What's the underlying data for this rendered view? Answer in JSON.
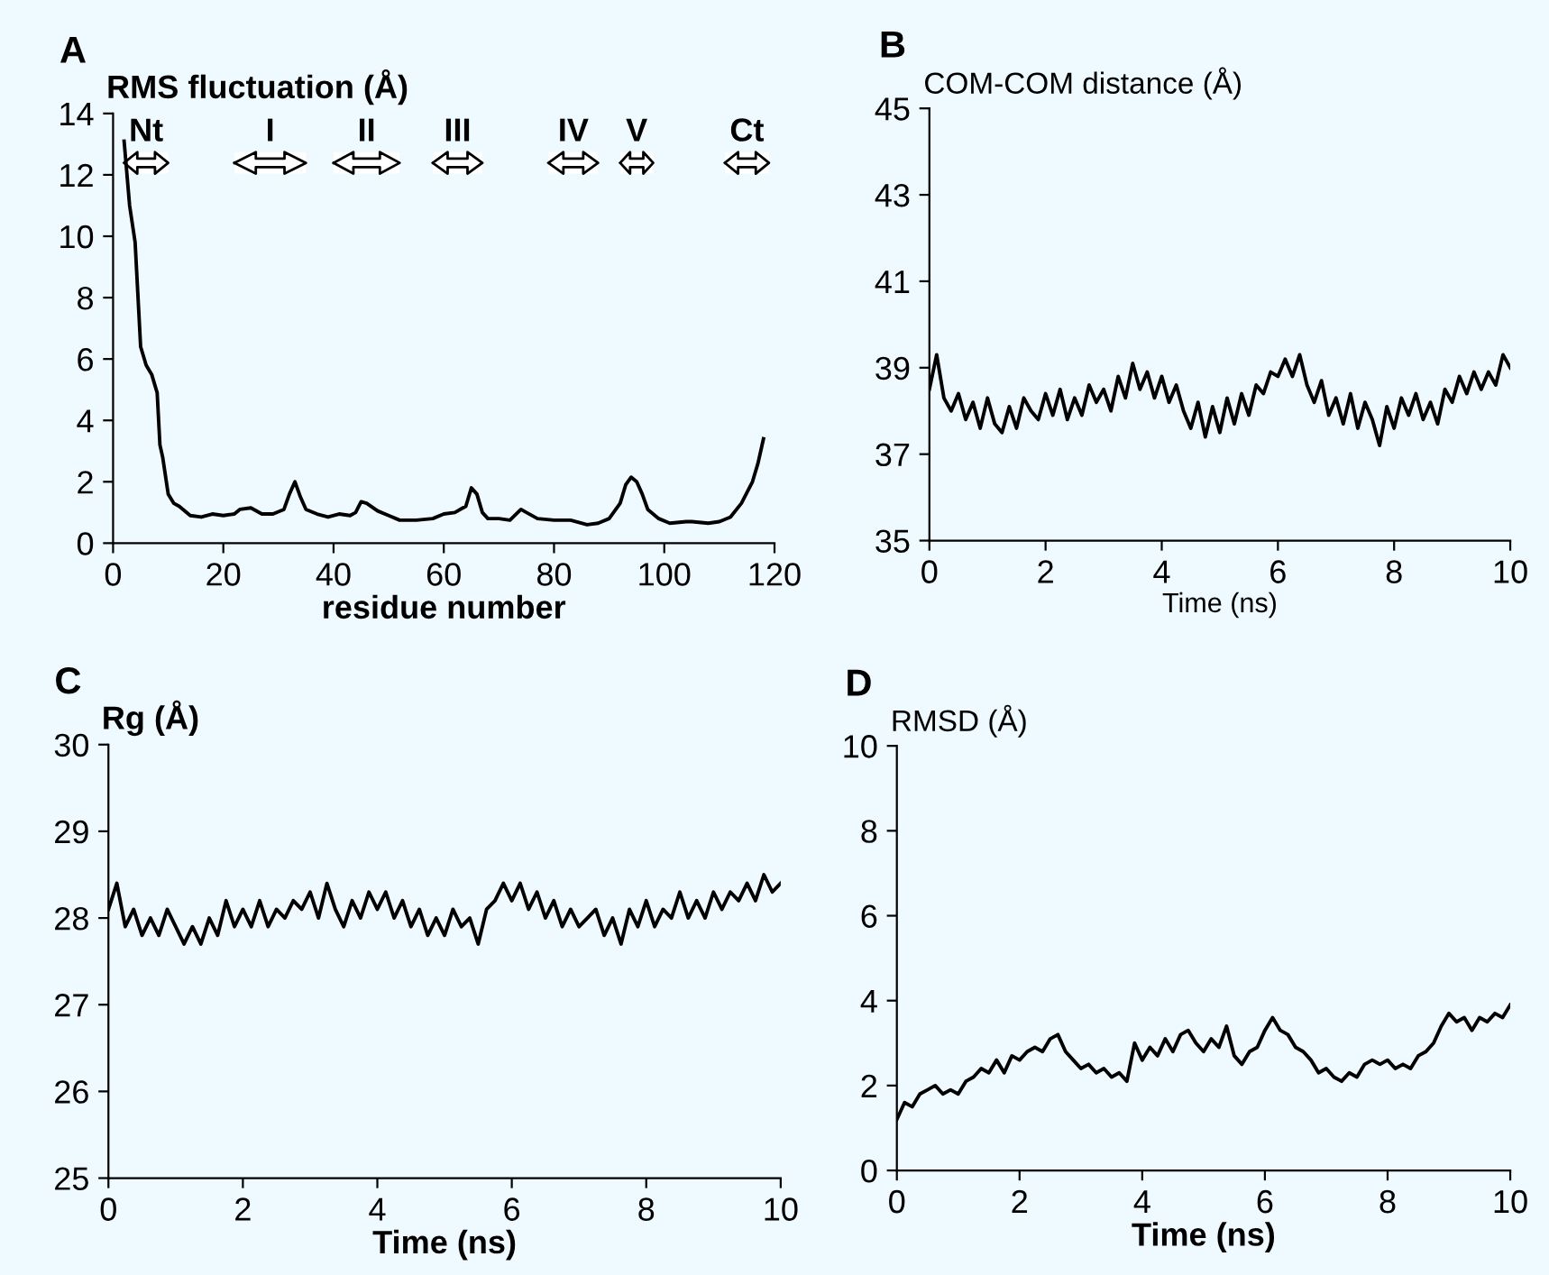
{
  "chart_data": [
    {
      "type": "line",
      "ylabel": "RMS fluctuation (Å)",
      "xlabel": "residue number",
      "xlim": [
        0,
        120
      ],
      "xticks": [
        0,
        20,
        40,
        60,
        80,
        100,
        120
      ],
      "ylim": [
        0,
        14
      ],
      "yticks": [
        0,
        2,
        4,
        6,
        8,
        10,
        12,
        14
      ],
      "grid": false,
      "marker": "none",
      "line_style": "solid",
      "annotations": [
        "A"
      ],
      "bands": [
        {
          "axis": "x",
          "from": 2,
          "to": 10,
          "label": "Nt",
          "color": "#ffffff"
        },
        {
          "axis": "x",
          "from": 22,
          "to": 35,
          "label": "I",
          "color": "#ffffff"
        },
        {
          "axis": "x",
          "from": 40,
          "to": 52,
          "label": "II",
          "color": "#ffffff"
        },
        {
          "axis": "x",
          "from": 58,
          "to": 67,
          "label": "III",
          "color": "#ffffff"
        },
        {
          "axis": "x",
          "from": 79,
          "to": 88,
          "label": "IV",
          "color": "#ffffff"
        },
        {
          "axis": "x",
          "from": 92,
          "to": 98,
          "label": "V",
          "color": "#ffffff"
        },
        {
          "axis": "x",
          "from": 111,
          "to": 119,
          "label": "Ct",
          "color": "#ffffff"
        }
      ],
      "series": [
        {
          "color": "#000000",
          "x": [
            2,
            3,
            4,
            5,
            6,
            7,
            8,
            8.5,
            9,
            10,
            11,
            12,
            14,
            16,
            18,
            20,
            22,
            23,
            25,
            27,
            29,
            31,
            32,
            33,
            34,
            35,
            37,
            39,
            41,
            43,
            44,
            45,
            46,
            48,
            50,
            52,
            55,
            58,
            60,
            62,
            64,
            65,
            66,
            67,
            68,
            70,
            72,
            74,
            75,
            77,
            80,
            83,
            86,
            88,
            90,
            92,
            93,
            94,
            95,
            96,
            97,
            99,
            101,
            104,
            105,
            108,
            110,
            112,
            114,
            116,
            117,
            118
          ],
          "values": [
            13.1,
            11,
            9.8,
            6.4,
            5.8,
            5.5,
            4.9,
            3.2,
            2.8,
            1.6,
            1.3,
            1.2,
            0.9,
            0.85,
            0.95,
            0.9,
            0.95,
            1.1,
            1.15,
            0.95,
            0.95,
            1.1,
            1.6,
            2.0,
            1.5,
            1.1,
            0.95,
            0.85,
            0.95,
            0.9,
            1.0,
            1.35,
            1.3,
            1.05,
            0.9,
            0.75,
            0.75,
            0.8,
            0.95,
            1.0,
            1.2,
            1.8,
            1.6,
            1.0,
            0.8,
            0.8,
            0.75,
            1.1,
            1.0,
            0.8,
            0.75,
            0.75,
            0.6,
            0.65,
            0.8,
            1.3,
            1.9,
            2.15,
            2.0,
            1.6,
            1.1,
            0.8,
            0.65,
            0.7,
            0.7,
            0.65,
            0.7,
            0.85,
            1.3,
            2.0,
            2.6,
            3.4
          ]
        }
      ]
    },
    {
      "type": "line",
      "ylabel": "COM-COM distance (Å)",
      "xlabel": "Time (ns)",
      "annotations": [
        "B"
      ],
      "xlim": [
        0,
        10
      ],
      "xticks": [
        0,
        2,
        4,
        6,
        8,
        10
      ],
      "ylim": [
        35,
        45
      ],
      "yticks": [
        35,
        37,
        39,
        41,
        43,
        45
      ],
      "grid": false,
      "marker": "none",
      "line_style": "solid",
      "series": [
        {
          "color": "#000000",
          "x": [
            0,
            0.125,
            0.25,
            0.375,
            0.5,
            0.625,
            0.75,
            0.875,
            1,
            1.125,
            1.25,
            1.375,
            1.5,
            1.625,
            1.75,
            1.875,
            2,
            2.125,
            2.25,
            2.375,
            2.5,
            2.625,
            2.75,
            2.875,
            3,
            3.125,
            3.25,
            3.375,
            3.5,
            3.625,
            3.75,
            3.875,
            4,
            4.125,
            4.25,
            4.375,
            4.5,
            4.625,
            4.75,
            4.875,
            5,
            5.125,
            5.25,
            5.375,
            5.5,
            5.625,
            5.75,
            5.875,
            6,
            6.125,
            6.25,
            6.375,
            6.5,
            6.625,
            6.75,
            6.875,
            7,
            7.125,
            7.25,
            7.375,
            7.5,
            7.625,
            7.75,
            7.875,
            8,
            8.125,
            8.25,
            8.375,
            8.5,
            8.625,
            8.75,
            8.875,
            9,
            9.125,
            9.25,
            9.375,
            9.5,
            9.625,
            9.75,
            9.875,
            10
          ],
          "values": [
            38.5,
            39.3,
            38.3,
            38.0,
            38.4,
            37.8,
            38.2,
            37.6,
            38.3,
            37.7,
            37.5,
            38.1,
            37.6,
            38.3,
            38.0,
            37.8,
            38.4,
            37.9,
            38.5,
            37.8,
            38.3,
            37.9,
            38.6,
            38.2,
            38.5,
            38.0,
            38.8,
            38.3,
            39.1,
            38.5,
            38.9,
            38.3,
            38.8,
            38.2,
            38.6,
            38.0,
            37.6,
            38.2,
            37.4,
            38.1,
            37.5,
            38.3,
            37.7,
            38.4,
            37.9,
            38.6,
            38.4,
            38.9,
            38.8,
            39.2,
            38.8,
            39.3,
            38.6,
            38.2,
            38.7,
            37.9,
            38.3,
            37.7,
            38.4,
            37.6,
            38.2,
            37.8,
            37.2,
            38.1,
            37.6,
            38.3,
            37.9,
            38.4,
            37.8,
            38.2,
            37.7,
            38.5,
            38.2,
            38.8,
            38.4,
            38.9,
            38.5,
            38.9,
            38.6,
            39.3,
            39.0
          ]
        }
      ]
    },
    {
      "type": "line",
      "ylabel": "Rg (Å)",
      "xlabel": "Time (ns)",
      "annotations": [
        "C"
      ],
      "xlim": [
        0,
        10
      ],
      "xticks": [
        0,
        2,
        4,
        6,
        8,
        10
      ],
      "ylim": [
        25,
        30
      ],
      "yticks": [
        25,
        26,
        27,
        28,
        29,
        30
      ],
      "grid": false,
      "marker": "none",
      "line_style": "solid",
      "series": [
        {
          "color": "#000000",
          "x": [
            0,
            0.125,
            0.25,
            0.375,
            0.5,
            0.625,
            0.75,
            0.875,
            1,
            1.125,
            1.25,
            1.375,
            1.5,
            1.625,
            1.75,
            1.875,
            2,
            2.125,
            2.25,
            2.375,
            2.5,
            2.625,
            2.75,
            2.875,
            3,
            3.125,
            3.25,
            3.375,
            3.5,
            3.625,
            3.75,
            3.875,
            4,
            4.125,
            4.25,
            4.375,
            4.5,
            4.625,
            4.75,
            4.875,
            5,
            5.125,
            5.25,
            5.375,
            5.5,
            5.625,
            5.75,
            5.875,
            6,
            6.125,
            6.25,
            6.375,
            6.5,
            6.625,
            6.75,
            6.875,
            7,
            7.125,
            7.25,
            7.375,
            7.5,
            7.625,
            7.75,
            7.875,
            8,
            8.125,
            8.25,
            8.375,
            8.5,
            8.625,
            8.75,
            8.875,
            9,
            9.125,
            9.25,
            9.375,
            9.5,
            9.625,
            9.75,
            9.875,
            10
          ],
          "values": [
            28.1,
            28.4,
            27.9,
            28.1,
            27.8,
            28.0,
            27.8,
            28.1,
            27.9,
            27.7,
            27.9,
            27.7,
            28.0,
            27.8,
            28.2,
            27.9,
            28.1,
            27.9,
            28.2,
            27.9,
            28.1,
            28.0,
            28.2,
            28.1,
            28.3,
            28.0,
            28.4,
            28.1,
            27.9,
            28.2,
            28.0,
            28.3,
            28.1,
            28.3,
            28.0,
            28.2,
            27.9,
            28.1,
            27.8,
            28.0,
            27.8,
            28.1,
            27.9,
            28.0,
            27.7,
            28.1,
            28.2,
            28.4,
            28.2,
            28.4,
            28.1,
            28.3,
            28.0,
            28.2,
            27.9,
            28.1,
            27.9,
            28.0,
            28.1,
            27.8,
            28.0,
            27.7,
            28.1,
            27.9,
            28.2,
            27.9,
            28.1,
            28.0,
            28.3,
            28.0,
            28.2,
            28.0,
            28.3,
            28.1,
            28.3,
            28.2,
            28.4,
            28.2,
            28.5,
            28.3,
            28.4
          ]
        }
      ]
    },
    {
      "type": "line",
      "ylabel": "RMSD (Å)",
      "xlabel": "Time (ns)",
      "annotations": [
        "D"
      ],
      "xlim": [
        0,
        10
      ],
      "xticks": [
        0,
        2,
        4,
        6,
        8,
        10
      ],
      "ylim": [
        0,
        10
      ],
      "yticks": [
        0,
        2,
        4,
        6,
        8,
        10
      ],
      "grid": false,
      "marker": "none",
      "line_style": "solid",
      "series": [
        {
          "color": "#000000",
          "x": [
            0,
            0.125,
            0.25,
            0.375,
            0.5,
            0.625,
            0.75,
            0.875,
            1,
            1.125,
            1.25,
            1.375,
            1.5,
            1.625,
            1.75,
            1.875,
            2,
            2.125,
            2.25,
            2.375,
            2.5,
            2.625,
            2.75,
            2.875,
            3,
            3.125,
            3.25,
            3.375,
            3.5,
            3.625,
            3.75,
            3.875,
            4,
            4.125,
            4.25,
            4.375,
            4.5,
            4.625,
            4.75,
            4.875,
            5,
            5.125,
            5.25,
            5.375,
            5.5,
            5.625,
            5.75,
            5.875,
            6,
            6.125,
            6.25,
            6.375,
            6.5,
            6.625,
            6.75,
            6.875,
            7,
            7.125,
            7.25,
            7.375,
            7.5,
            7.625,
            7.75,
            7.875,
            8,
            8.125,
            8.25,
            8.375,
            8.5,
            8.625,
            8.75,
            8.875,
            9,
            9.125,
            9.25,
            9.375,
            9.5,
            9.625,
            9.75,
            9.875,
            10
          ],
          "values": [
            1.2,
            1.6,
            1.5,
            1.8,
            1.9,
            2.0,
            1.8,
            1.9,
            1.8,
            2.1,
            2.2,
            2.4,
            2.3,
            2.6,
            2.3,
            2.7,
            2.6,
            2.8,
            2.9,
            2.8,
            3.1,
            3.2,
            2.8,
            2.6,
            2.4,
            2.5,
            2.3,
            2.4,
            2.2,
            2.3,
            2.1,
            3.0,
            2.6,
            2.9,
            2.7,
            3.1,
            2.8,
            3.2,
            3.3,
            3.0,
            2.8,
            3.1,
            2.9,
            3.4,
            2.7,
            2.5,
            2.8,
            2.9,
            3.3,
            3.6,
            3.3,
            3.2,
            2.9,
            2.8,
            2.6,
            2.3,
            2.4,
            2.2,
            2.1,
            2.3,
            2.2,
            2.5,
            2.6,
            2.5,
            2.6,
            2.4,
            2.5,
            2.4,
            2.7,
            2.8,
            3.0,
            3.4,
            3.7,
            3.5,
            3.6,
            3.3,
            3.6,
            3.5,
            3.7,
            3.6,
            3.9
          ]
        }
      ]
    }
  ]
}
